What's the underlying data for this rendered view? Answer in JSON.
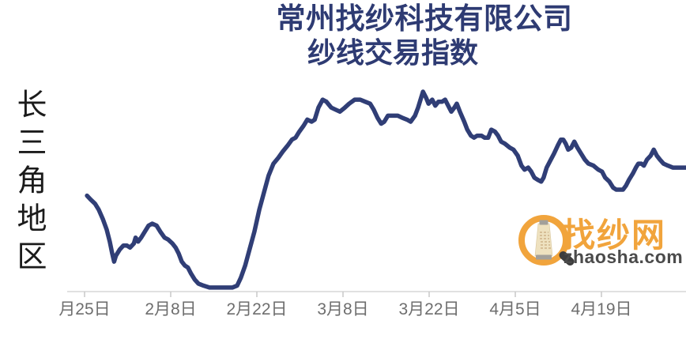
{
  "title": {
    "line1": "常州找纱科技有限公司",
    "line2": "纱线交易指数"
  },
  "region_label": "长三角地区",
  "watermark": {
    "icon": "magnifier-yarn-cone-icon",
    "brand": "找纱网",
    "domain": "zhaosha.com"
  },
  "colors": {
    "title": "#2e3b73",
    "line": "#303e76",
    "axis_line": "#d7d7d7",
    "tick": "#c9c9c9",
    "axis_label": "#6e6e6e",
    "region_label": "#1b1b1b",
    "logo_orange": "#f1a43c",
    "logo_dark": "#4b4b4b"
  },
  "chart_data": {
    "type": "line",
    "title": "常州找纱科技有限公司 纱线交易指数",
    "x_tick_labels": [
      "月25日",
      "2月8日",
      "2月22日",
      "3月8日",
      "3月22日",
      "4月5日",
      "4月19日"
    ],
    "x_tick_days": [
      0,
      14,
      28,
      42,
      56,
      70,
      84
    ],
    "x_unit": "days from first tick (1月25日), ticks every 14 days",
    "y_axis_labeled": false,
    "ylim": [
      0,
      100
    ],
    "y_scale_note": "index normalized 0-100 from pixel trace (no y-axis labels in source)",
    "grid": false,
    "legend": false,
    "series": [
      {
        "name": "纱线交易指数",
        "points": [
          [
            0.4,
            48
          ],
          [
            1.0,
            46
          ],
          [
            1.7,
            44
          ],
          [
            2.3,
            41
          ],
          [
            3.0,
            36
          ],
          [
            3.6,
            31
          ],
          [
            4.1,
            25
          ],
          [
            4.5,
            19
          ],
          [
            4.8,
            15
          ],
          [
            5.1,
            18
          ],
          [
            5.7,
            21
          ],
          [
            6.3,
            23
          ],
          [
            6.9,
            23
          ],
          [
            7.4,
            22
          ],
          [
            8.0,
            24
          ],
          [
            8.3,
            27
          ],
          [
            8.7,
            25
          ],
          [
            9.2,
            27
          ],
          [
            9.8,
            30
          ],
          [
            10.4,
            33
          ],
          [
            11.0,
            34
          ],
          [
            11.7,
            33
          ],
          [
            12.3,
            30
          ],
          [
            13.0,
            27
          ],
          [
            13.6,
            26
          ],
          [
            14.3,
            24
          ],
          [
            14.8,
            22
          ],
          [
            15.3,
            19
          ],
          [
            15.8,
            15
          ],
          [
            16.3,
            13
          ],
          [
            16.8,
            12
          ],
          [
            17.3,
            9
          ],
          [
            17.9,
            6
          ],
          [
            18.5,
            4
          ],
          [
            19.3,
            3
          ],
          [
            20.3,
            2
          ],
          [
            21.6,
            2
          ],
          [
            22.9,
            2
          ],
          [
            24.0,
            2
          ],
          [
            24.8,
            3
          ],
          [
            25.4,
            7
          ],
          [
            26.1,
            13
          ],
          [
            26.8,
            21
          ],
          [
            27.6,
            30
          ],
          [
            28.4,
            41
          ],
          [
            29.2,
            50
          ],
          [
            29.9,
            58
          ],
          [
            30.7,
            64
          ],
          [
            31.5,
            67
          ],
          [
            32.2,
            70
          ],
          [
            33.0,
            73
          ],
          [
            33.7,
            76
          ],
          [
            34.3,
            77
          ],
          [
            34.9,
            80
          ],
          [
            35.6,
            83
          ],
          [
            36.2,
            86
          ],
          [
            36.9,
            85
          ],
          [
            37.4,
            86
          ],
          [
            38.0,
            92
          ],
          [
            38.7,
            96
          ],
          [
            39.3,
            95
          ],
          [
            40.1,
            92
          ],
          [
            40.8,
            91
          ],
          [
            41.5,
            90
          ],
          [
            42.3,
            92
          ],
          [
            43.0,
            94
          ],
          [
            43.9,
            96
          ],
          [
            44.8,
            96
          ],
          [
            45.6,
            95
          ],
          [
            46.4,
            94
          ],
          [
            47.0,
            91
          ],
          [
            47.6,
            87
          ],
          [
            48.2,
            84
          ],
          [
            48.7,
            85
          ],
          [
            49.3,
            88
          ],
          [
            50.1,
            88
          ],
          [
            50.9,
            88
          ],
          [
            51.6,
            87
          ],
          [
            52.4,
            86
          ],
          [
            53.0,
            85
          ],
          [
            53.7,
            88
          ],
          [
            54.2,
            92
          ],
          [
            54.6,
            96
          ],
          [
            55.0,
            100
          ],
          [
            55.5,
            97
          ],
          [
            55.9,
            94
          ],
          [
            56.5,
            96
          ],
          [
            57.0,
            93
          ],
          [
            57.5,
            95
          ],
          [
            58.1,
            95
          ],
          [
            58.6,
            96
          ],
          [
            59.1,
            93
          ],
          [
            59.6,
            90
          ],
          [
            60.1,
            92
          ],
          [
            60.5,
            94
          ],
          [
            61.0,
            90
          ],
          [
            61.7,
            85
          ],
          [
            62.2,
            81
          ],
          [
            62.8,
            78
          ],
          [
            63.3,
            77
          ],
          [
            63.8,
            78
          ],
          [
            64.5,
            78
          ],
          [
            65.0,
            77
          ],
          [
            65.6,
            77
          ],
          [
            66.1,
            81
          ],
          [
            66.7,
            80
          ],
          [
            67.2,
            78
          ],
          [
            67.7,
            75
          ],
          [
            68.3,
            74
          ],
          [
            69.1,
            72
          ],
          [
            69.7,
            71
          ],
          [
            70.4,
            68
          ],
          [
            71.0,
            63
          ],
          [
            71.5,
            61
          ],
          [
            72.1,
            62
          ],
          [
            72.6,
            60
          ],
          [
            73.1,
            57
          ],
          [
            73.6,
            56
          ],
          [
            74.2,
            55
          ],
          [
            74.6,
            57
          ],
          [
            75.1,
            62
          ],
          [
            75.6,
            65
          ],
          [
            76.3,
            69
          ],
          [
            76.9,
            73
          ],
          [
            77.4,
            76
          ],
          [
            77.8,
            76
          ],
          [
            78.2,
            74
          ],
          [
            78.6,
            71
          ],
          [
            79.1,
            72
          ],
          [
            79.6,
            75
          ],
          [
            80.1,
            72
          ],
          [
            80.7,
            69
          ],
          [
            81.3,
            66
          ],
          [
            81.9,
            64
          ],
          [
            82.7,
            63
          ],
          [
            83.5,
            61
          ],
          [
            84.1,
            60
          ],
          [
            84.6,
            57
          ],
          [
            85.3,
            55
          ],
          [
            85.9,
            52
          ],
          [
            86.4,
            51
          ],
          [
            87.0,
            51
          ],
          [
            87.5,
            51
          ],
          [
            88.0,
            53
          ],
          [
            88.5,
            56
          ],
          [
            89.1,
            59
          ],
          [
            89.6,
            62
          ],
          [
            90.0,
            64
          ],
          [
            90.5,
            64
          ],
          [
            90.9,
            63
          ],
          [
            91.4,
            66
          ],
          [
            92.0,
            68
          ],
          [
            92.5,
            71
          ],
          [
            93.0,
            68
          ],
          [
            93.5,
            66
          ],
          [
            94.1,
            64
          ],
          [
            94.8,
            63
          ],
          [
            95.6,
            62
          ],
          [
            96.3,
            62
          ],
          [
            97.7,
            62
          ]
        ]
      }
    ]
  }
}
